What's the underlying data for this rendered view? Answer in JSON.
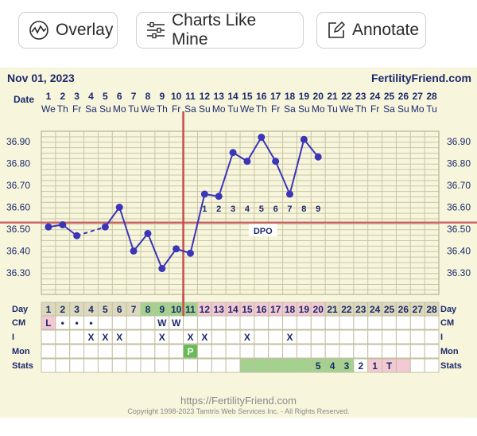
{
  "toolbar": {
    "overlay_label": "Overlay",
    "charts_like_mine_label": "Charts Like Mine",
    "annotate_label": "Annotate"
  },
  "chart_header": {
    "date": "Nov 01, 2023",
    "site": "FertilityFriend.com"
  },
  "footer": {
    "url": "https://FertilityFriend.com",
    "copyright": "Copyright 1998-2023 Tamtris Web Services Inc. - All Rights Reserved."
  },
  "colors": {
    "chart_bg": "#f7f5dc",
    "grid": "#c9c6a6",
    "line": "#3b35b8",
    "coverline": "#cc6666",
    "ovulation_line": "#c84c4c",
    "day_green": "#a3d28e",
    "day_pink": "#f3c9d3",
    "cm_pink": "#f3c9d3",
    "peak_green": "#66bb55",
    "stats_green": "#a3d28e",
    "stats_pink": "#f3c9d3"
  },
  "chart_data": {
    "type": "line",
    "title": "",
    "xlabel": "Date",
    "ylabel": "",
    "ylim": [
      36.2,
      36.95
    ],
    "y_ticks": [
      "36.90",
      "36.80",
      "36.70",
      "36.60",
      "36.50",
      "36.40",
      "36.30"
    ],
    "grid": true,
    "date_row_label": "Date",
    "date_numbers": [
      "1",
      "2",
      "3",
      "4",
      "5",
      "6",
      "7",
      "8",
      "9",
      "10",
      "11",
      "12",
      "13",
      "14",
      "15",
      "16",
      "17",
      "18",
      "19",
      "20",
      "21",
      "22",
      "23",
      "24",
      "25",
      "26",
      "27",
      "28"
    ],
    "weekdays": [
      "We",
      "Th",
      "Fr",
      "Sa",
      "Su",
      "Mo",
      "Tu",
      "We",
      "Th",
      "Fr",
      "Sa",
      "Su",
      "Mo",
      "Tu",
      "We",
      "Th",
      "Fr",
      "Sa",
      "Su",
      "Mo",
      "Tu",
      "We",
      "Th",
      "Fr",
      "Sa",
      "Su",
      "Mo",
      "Tu"
    ],
    "series": [
      {
        "values": [
          36.51,
          36.52,
          36.47,
          null,
          36.51,
          36.6,
          36.4,
          36.48,
          36.32,
          36.41,
          36.39,
          36.66,
          36.65,
          36.85,
          36.81,
          36.92,
          36.81,
          36.66,
          36.91,
          36.83,
          null,
          null,
          null,
          null,
          null,
          null,
          null,
          null
        ],
        "dashed_segments": [
          [
            3,
            5
          ]
        ]
      }
    ],
    "coverline": 36.53,
    "ovulation_day": 11,
    "dpo_label": "DPO",
    "dpo_numbers": [
      "1",
      "2",
      "3",
      "4",
      "5",
      "6",
      "7",
      "8",
      "9"
    ],
    "dpo_start_day": 12,
    "rows": {
      "day": {
        "label": "Day",
        "values": [
          "1",
          "2",
          "3",
          "4",
          "5",
          "6",
          "7",
          "8",
          "9",
          "10",
          "11",
          "12",
          "13",
          "14",
          "15",
          "16",
          "17",
          "18",
          "19",
          "20",
          "21",
          "22",
          "23",
          "24",
          "25",
          "26",
          "27",
          "28"
        ],
        "green_days": [
          8,
          9,
          10,
          11
        ],
        "pink_days": [
          12,
          13,
          14,
          15,
          16,
          17,
          18,
          19,
          20
        ]
      },
      "cm": {
        "label": "CM",
        "values": [
          "L",
          "•",
          "•",
          "•",
          "",
          "",
          "",
          "",
          "W",
          "W",
          "",
          "",
          "",
          "",
          "",
          "",
          "",
          "",
          "",
          "",
          "",
          "",
          "",
          "",
          "",
          "",
          "",
          ""
        ],
        "pink_days": [
          1
        ]
      },
      "i": {
        "label": "I",
        "values": [
          "",
          "",
          "",
          "X",
          "X",
          "X",
          "",
          "",
          "X",
          "",
          "X",
          "X",
          "",
          "",
          "X",
          "",
          "",
          "X",
          "",
          "",
          "",
          "",
          "",
          "",
          "",
          "",
          "",
          ""
        ]
      },
      "mon": {
        "label": "Mon",
        "values": [
          "",
          "",
          "",
          "",
          "",
          "",
          "",
          "",
          "",
          "",
          "P",
          "",
          "",
          "",
          "",
          "",
          "",
          "",
          "",
          "",
          "",
          "",
          "",
          "",
          "",
          "",
          "",
          ""
        ],
        "green_days": [
          11
        ]
      },
      "stats": {
        "label": "Stats",
        "values": [
          "",
          "",
          "",
          "",
          "",
          "",
          "",
          "",
          "",
          "",
          "",
          "",
          "",
          "",
          "",
          "",
          "",
          "",
          "",
          "5",
          "4",
          "3",
          "2",
          "1",
          "T",
          "",
          "",
          ""
        ],
        "green_days": [
          15,
          16,
          17,
          18,
          19,
          20,
          21,
          22
        ],
        "pink_days": [
          24,
          25,
          26
        ]
      }
    }
  }
}
